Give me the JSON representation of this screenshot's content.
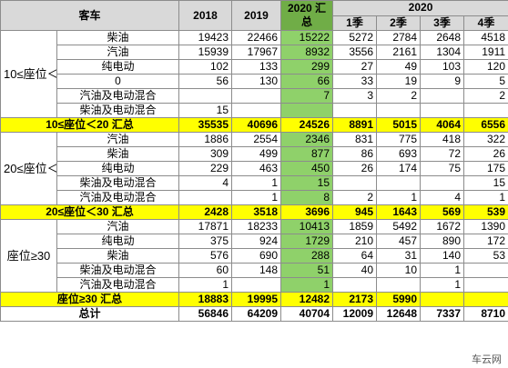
{
  "header": {
    "category": "客车",
    "y2018": "2018",
    "y2019": "2019",
    "y2020_total": "2020 汇总",
    "y2020": "2020",
    "q1": "1季",
    "q2": "2季",
    "q3": "3季",
    "q4": "4季"
  },
  "groups": [
    {
      "label": "10≤座位＜20",
      "rows": [
        {
          "fuel": "柴油",
          "v2018": "19423",
          "v2019": "22466",
          "v2020": "15222",
          "q1": "5272",
          "q2": "2784",
          "q3": "2648",
          "q4": "4518"
        },
        {
          "fuel": "汽油",
          "v2018": "15939",
          "v2019": "17967",
          "v2020": "8932",
          "q1": "3556",
          "q2": "2161",
          "q3": "1304",
          "q4": "1911"
        },
        {
          "fuel": "纯电动",
          "v2018": "102",
          "v2019": "133",
          "v2020": "299",
          "q1": "27",
          "q2": "49",
          "q3": "103",
          "q4": "120"
        },
        {
          "fuel": "0",
          "v2018": "56",
          "v2019": "130",
          "v2020": "66",
          "q1": "33",
          "q2": "19",
          "q3": "9",
          "q4": "5"
        },
        {
          "fuel": "汽油及电动混合",
          "v2018": "",
          "v2019": "",
          "v2020": "7",
          "q1": "3",
          "q2": "2",
          "q3": "",
          "q4": "2"
        },
        {
          "fuel": "柴油及电动混合",
          "v2018": "15",
          "v2019": "",
          "v2020": "",
          "q1": "",
          "q2": "",
          "q3": "",
          "q4": ""
        }
      ],
      "subtotal": {
        "label": "10≤座位＜20 汇总",
        "v2018": "35535",
        "v2019": "40696",
        "v2020": "24526",
        "q1": "8891",
        "q2": "5015",
        "q3": "4064",
        "q4": "6556"
      }
    },
    {
      "label": "20≤座位＜30",
      "rows": [
        {
          "fuel": "汽油",
          "v2018": "1886",
          "v2019": "2554",
          "v2020": "2346",
          "q1": "831",
          "q2": "775",
          "q3": "418",
          "q4": "322"
        },
        {
          "fuel": "柴油",
          "v2018": "309",
          "v2019": "499",
          "v2020": "877",
          "q1": "86",
          "q2": "693",
          "q3": "72",
          "q4": "26"
        },
        {
          "fuel": "纯电动",
          "v2018": "229",
          "v2019": "463",
          "v2020": "450",
          "q1": "26",
          "q2": "174",
          "q3": "75",
          "q4": "175"
        },
        {
          "fuel": "柴油及电动混合",
          "v2018": "4",
          "v2019": "1",
          "v2020": "15",
          "q1": "",
          "q2": "",
          "q3": "",
          "q4": "15"
        },
        {
          "fuel": "汽油及电动混合",
          "v2018": "",
          "v2019": "1",
          "v2020": "8",
          "q1": "2",
          "q2": "1",
          "q3": "4",
          "q4": "1"
        }
      ],
      "subtotal": {
        "label": "20≤座位＜30 汇总",
        "v2018": "2428",
        "v2019": "3518",
        "v2020": "3696",
        "q1": "945",
        "q2": "1643",
        "q3": "569",
        "q4": "539"
      }
    },
    {
      "label": "座位≥30",
      "rows": [
        {
          "fuel": "汽油",
          "v2018": "17871",
          "v2019": "18233",
          "v2020": "10413",
          "q1": "1859",
          "q2": "5492",
          "q3": "1672",
          "q4": "1390"
        },
        {
          "fuel": "纯电动",
          "v2018": "375",
          "v2019": "924",
          "v2020": "1729",
          "q1": "210",
          "q2": "457",
          "q3": "890",
          "q4": "172"
        },
        {
          "fuel": "柴油",
          "v2018": "576",
          "v2019": "690",
          "v2020": "288",
          "q1": "64",
          "q2": "31",
          "q3": "140",
          "q4": "53"
        },
        {
          "fuel": "柴油及电动混合",
          "v2018": "60",
          "v2019": "148",
          "v2020": "51",
          "q1": "40",
          "q2": "10",
          "q3": "1",
          "q4": ""
        },
        {
          "fuel": "汽油及电动混合",
          "v2018": "1",
          "v2019": "",
          "v2020": "1",
          "q1": "",
          "q2": "",
          "q3": "1",
          "q4": ""
        }
      ],
      "subtotal": {
        "label": "座位≥30 汇总",
        "v2018": "18883",
        "v2019": "19995",
        "v2020": "12482",
        "q1": "2173",
        "q2": "5990",
        "q3": "",
        "q4": ""
      }
    }
  ],
  "total": {
    "label": "总计",
    "v2018": "56846",
    "v2019": "64209",
    "v2020": "40704",
    "q1": "12009",
    "q2": "12648",
    "q3": "7337",
    "q4": "8710"
  },
  "watermark": "车云网",
  "colors": {
    "header_gray": "#d9d9d9",
    "highlight_green": "#8fd16a",
    "header_green": "#70ad47",
    "subtotal_yellow": "#ffff00"
  }
}
